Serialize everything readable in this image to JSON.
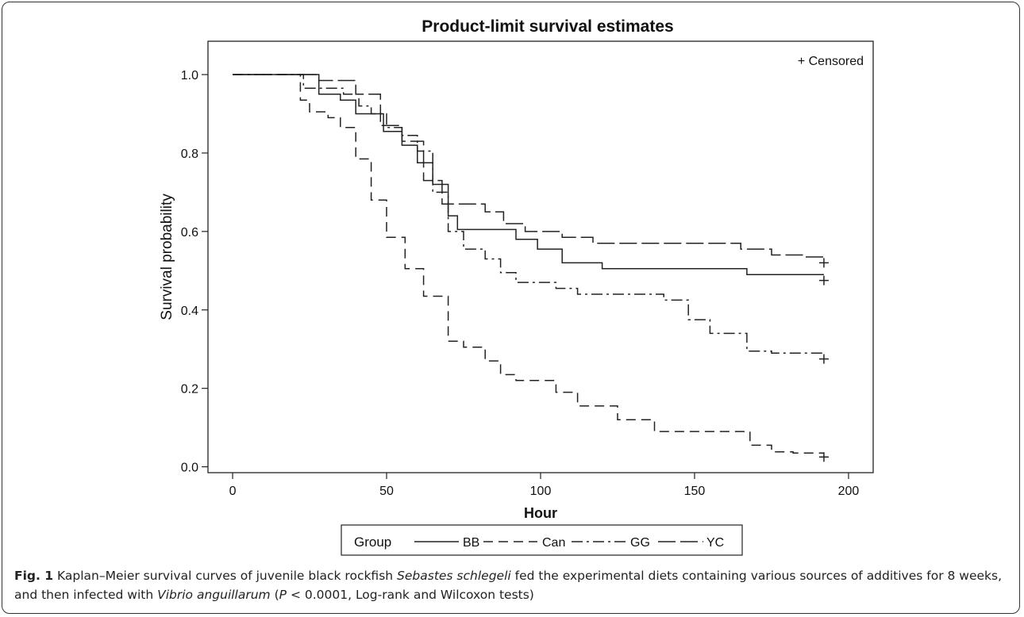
{
  "chart_data": {
    "type": "line",
    "title": "Product-limit survival estimates",
    "xlabel": "Hour",
    "ylabel": "Survival probability",
    "xlim": [
      -8,
      208
    ],
    "ylim": [
      -0.015,
      1.085
    ],
    "x_ticks": [
      "0",
      "50",
      "100",
      "150",
      "200"
    ],
    "x_tick_values": [
      0,
      50,
      100,
      150,
      200
    ],
    "y_ticks": [
      "0.0",
      "0.2",
      "0.4",
      "0.6",
      "0.8",
      "1.0"
    ],
    "y_tick_values": [
      0,
      0.2,
      0.4,
      0.6,
      0.8,
      1.0
    ],
    "censored_note": "+ Censored",
    "legend": {
      "title": "Group",
      "position": "bottom"
    },
    "series": [
      {
        "name": "BB",
        "dash": "",
        "points": [
          [
            0,
            1.0
          ],
          [
            28,
            1.0
          ],
          [
            28,
            0.95
          ],
          [
            35,
            0.95
          ],
          [
            35,
            0.935
          ],
          [
            40,
            0.935
          ],
          [
            40,
            0.9
          ],
          [
            49,
            0.9
          ],
          [
            49,
            0.855
          ],
          [
            55,
            0.855
          ],
          [
            55,
            0.82
          ],
          [
            60,
            0.82
          ],
          [
            60,
            0.775
          ],
          [
            65,
            0.775
          ],
          [
            65,
            0.72
          ],
          [
            70,
            0.72
          ],
          [
            70,
            0.64
          ],
          [
            73,
            0.64
          ],
          [
            73,
            0.605
          ],
          [
            92,
            0.605
          ],
          [
            92,
            0.58
          ],
          [
            99,
            0.58
          ],
          [
            99,
            0.555
          ],
          [
            107,
            0.555
          ],
          [
            107,
            0.52
          ],
          [
            120,
            0.52
          ],
          [
            120,
            0.505
          ],
          [
            167,
            0.505
          ],
          [
            167,
            0.49
          ],
          [
            192,
            0.49
          ]
        ],
        "censored_at": [
          192,
          0.475
        ]
      },
      {
        "name": "Can",
        "dash": "12 7",
        "points": [
          [
            0,
            1.0
          ],
          [
            22,
            1.0
          ],
          [
            22,
            0.935
          ],
          [
            25,
            0.935
          ],
          [
            25,
            0.905
          ],
          [
            31,
            0.905
          ],
          [
            31,
            0.89
          ],
          [
            35,
            0.89
          ],
          [
            35,
            0.865
          ],
          [
            40,
            0.865
          ],
          [
            40,
            0.785
          ],
          [
            45,
            0.785
          ],
          [
            45,
            0.68
          ],
          [
            50,
            0.68
          ],
          [
            50,
            0.585
          ],
          [
            56,
            0.585
          ],
          [
            56,
            0.505
          ],
          [
            62,
            0.505
          ],
          [
            62,
            0.435
          ],
          [
            70,
            0.435
          ],
          [
            70,
            0.32
          ],
          [
            75,
            0.32
          ],
          [
            75,
            0.305
          ],
          [
            82,
            0.305
          ],
          [
            82,
            0.27
          ],
          [
            87,
            0.27
          ],
          [
            87,
            0.235
          ],
          [
            92,
            0.235
          ],
          [
            92,
            0.22
          ],
          [
            105,
            0.22
          ],
          [
            105,
            0.19
          ],
          [
            112,
            0.19
          ],
          [
            112,
            0.155
          ],
          [
            125,
            0.155
          ],
          [
            125,
            0.12
          ],
          [
            137,
            0.12
          ],
          [
            137,
            0.09
          ],
          [
            145,
            0.09
          ],
          [
            145,
            0.09
          ],
          [
            168,
            0.09
          ],
          [
            168,
            0.055
          ],
          [
            175,
            0.055
          ],
          [
            175,
            0.038
          ],
          [
            182,
            0.038
          ],
          [
            182,
            0.035
          ],
          [
            192,
            0.035
          ]
        ],
        "censored_at": [
          192,
          0.025
        ]
      },
      {
        "name": "GG",
        "dash": "14 5 3 5",
        "points": [
          [
            0,
            1.0
          ],
          [
            23,
            1.0
          ],
          [
            23,
            0.965
          ],
          [
            36,
            0.965
          ],
          [
            36,
            0.95
          ],
          [
            41,
            0.95
          ],
          [
            41,
            0.92
          ],
          [
            45,
            0.92
          ],
          [
            45,
            0.9
          ],
          [
            50,
            0.9
          ],
          [
            50,
            0.865
          ],
          [
            55,
            0.865
          ],
          [
            55,
            0.845
          ],
          [
            60,
            0.845
          ],
          [
            60,
            0.805
          ],
          [
            65,
            0.805
          ],
          [
            65,
            0.7
          ],
          [
            70,
            0.7
          ],
          [
            70,
            0.6
          ],
          [
            75,
            0.6
          ],
          [
            75,
            0.555
          ],
          [
            82,
            0.555
          ],
          [
            82,
            0.53
          ],
          [
            87,
            0.53
          ],
          [
            87,
            0.495
          ],
          [
            92,
            0.495
          ],
          [
            92,
            0.47
          ],
          [
            105,
            0.47
          ],
          [
            105,
            0.455
          ],
          [
            112,
            0.455
          ],
          [
            112,
            0.44
          ],
          [
            140,
            0.44
          ],
          [
            140,
            0.425
          ],
          [
            148,
            0.425
          ],
          [
            148,
            0.375
          ],
          [
            155,
            0.375
          ],
          [
            155,
            0.34
          ],
          [
            167,
            0.34
          ],
          [
            167,
            0.295
          ],
          [
            175,
            0.295
          ],
          [
            175,
            0.29
          ],
          [
            192,
            0.29
          ]
        ],
        "censored_at": [
          192,
          0.275
        ]
      },
      {
        "name": "YC",
        "dash": "22 6",
        "points": [
          [
            0,
            1.0
          ],
          [
            28,
            1.0
          ],
          [
            28,
            0.985
          ],
          [
            40,
            0.985
          ],
          [
            40,
            0.95
          ],
          [
            48,
            0.95
          ],
          [
            48,
            0.87
          ],
          [
            55,
            0.87
          ],
          [
            55,
            0.83
          ],
          [
            62,
            0.83
          ],
          [
            62,
            0.73
          ],
          [
            68,
            0.73
          ],
          [
            68,
            0.67
          ],
          [
            82,
            0.67
          ],
          [
            82,
            0.65
          ],
          [
            88,
            0.65
          ],
          [
            88,
            0.62
          ],
          [
            95,
            0.62
          ],
          [
            95,
            0.6
          ],
          [
            107,
            0.6
          ],
          [
            107,
            0.585
          ],
          [
            117,
            0.585
          ],
          [
            117,
            0.57
          ],
          [
            165,
            0.57
          ],
          [
            165,
            0.555
          ],
          [
            175,
            0.555
          ],
          [
            175,
            0.54
          ],
          [
            186,
            0.54
          ],
          [
            186,
            0.535
          ],
          [
            192,
            0.535
          ]
        ],
        "censored_at": [
          192,
          0.52
        ]
      }
    ]
  },
  "caption": {
    "label": "Fig. 1",
    "text_1": " Kaplan–Meier survival curves of juvenile black rockfish ",
    "species": "Sebastes schlegeli",
    "text_2": " fed the experimental diets containing various sources of additives for 8 weeks, and then infected with ",
    "pathogen": "Vibrio anguillarum",
    "text_3": " (",
    "p_symbol": "P",
    "text_4": " < 0.0001, Log-rank and Wilcoxon tests)"
  }
}
